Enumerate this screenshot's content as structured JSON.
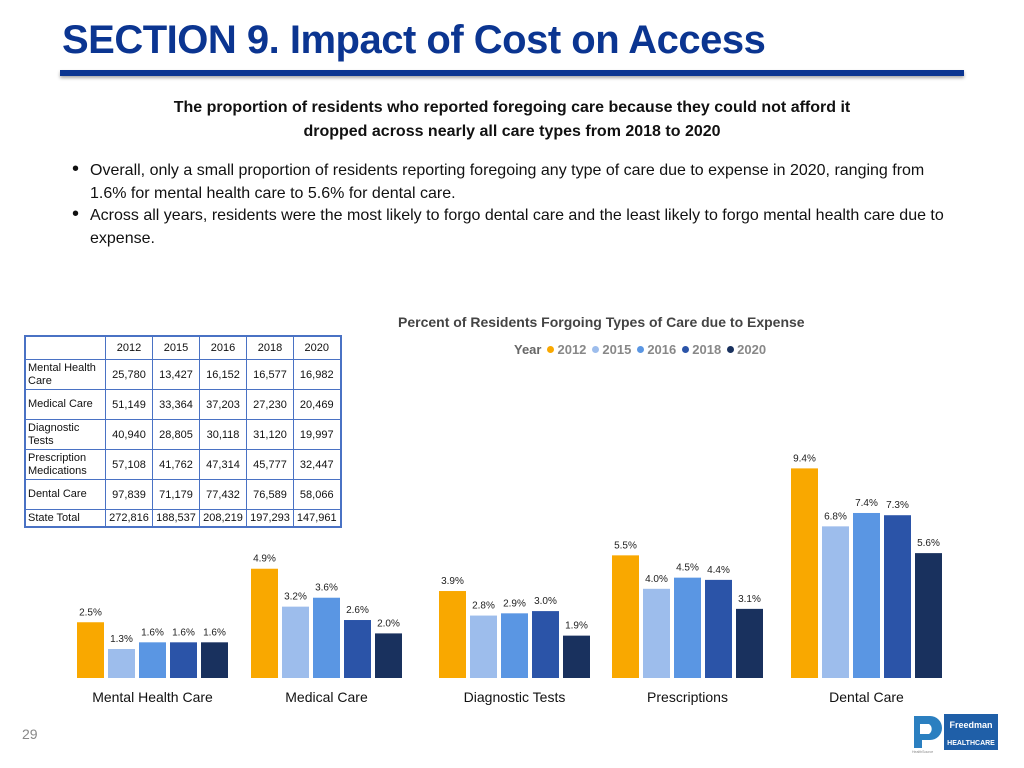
{
  "slide": {
    "title": "SECTION 9. Impact of Cost on Access",
    "subtitle_line1": "The proportion of residents who reported foregoing care because they could not afford it",
    "subtitle_line2": "dropped across nearly all care types from 2018 to 2020",
    "bullets": [
      "Overall, only a small proportion of residents reporting foregoing any type of care due to expense in 2020, ranging from 1.6% for mental health care to 5.6% for dental care.",
      "Across all years, residents were the most likely to forgo dental care and the least likely to forgo mental health care due to expense."
    ],
    "page_number": "29",
    "logo": {
      "name": "Freedman",
      "sub": "HEALTHCARE",
      "tag": "HealthSource"
    }
  },
  "table": {
    "headers": [
      "2012",
      "2015",
      "2016",
      "2018",
      "2020"
    ],
    "rows": [
      {
        "label": "Mental Health Care",
        "values": [
          "25,780",
          "13,427",
          "16,152",
          "16,577",
          "16,982"
        ]
      },
      {
        "label": "Medical Care",
        "values": [
          "51,149",
          "33,364",
          "37,203",
          "27,230",
          "20,469"
        ]
      },
      {
        "label": "Diagnostic Tests",
        "values": [
          "40,940",
          "28,805",
          "30,118",
          "31,120",
          "19,997"
        ]
      },
      {
        "label": "Prescription Medications",
        "values": [
          "57,108",
          "41,762",
          "47,314",
          "45,777",
          "32,447"
        ]
      },
      {
        "label": "Dental Care",
        "values": [
          "97,839",
          "71,179",
          "77,432",
          "76,589",
          "58,066"
        ]
      }
    ],
    "total": {
      "label": "State Total",
      "values": [
        "272,816",
        "188,537",
        "208,219",
        "197,293",
        "147,961"
      ]
    }
  },
  "chart_data": {
    "type": "bar",
    "title": "Percent of Residents Forgoing Types of Care due to Expense",
    "legend_title": "Year",
    "categories": [
      "Mental Health Care",
      "Medical Care",
      "Diagnostic Tests",
      "Prescriptions",
      "Dental Care"
    ],
    "series": [
      {
        "name": "2012",
        "color": "#f9a800",
        "values": [
          2.5,
          4.9,
          3.9,
          5.5,
          9.4
        ]
      },
      {
        "name": "2015",
        "color": "#9dbdec",
        "values": [
          1.3,
          3.2,
          2.8,
          4.0,
          6.8
        ]
      },
      {
        "name": "2016",
        "color": "#5a96e3",
        "values": [
          1.6,
          3.6,
          2.9,
          4.5,
          7.4
        ]
      },
      {
        "name": "2018",
        "color": "#2b54a8",
        "values": [
          1.6,
          2.6,
          3.0,
          4.4,
          7.3
        ]
      },
      {
        "name": "2020",
        "color": "#19315e",
        "values": [
          1.6,
          2.0,
          1.9,
          3.1,
          5.6
        ]
      }
    ],
    "value_suffix": "%",
    "xlabel": "",
    "ylabel": "",
    "ylim": [
      0,
      10
    ]
  }
}
